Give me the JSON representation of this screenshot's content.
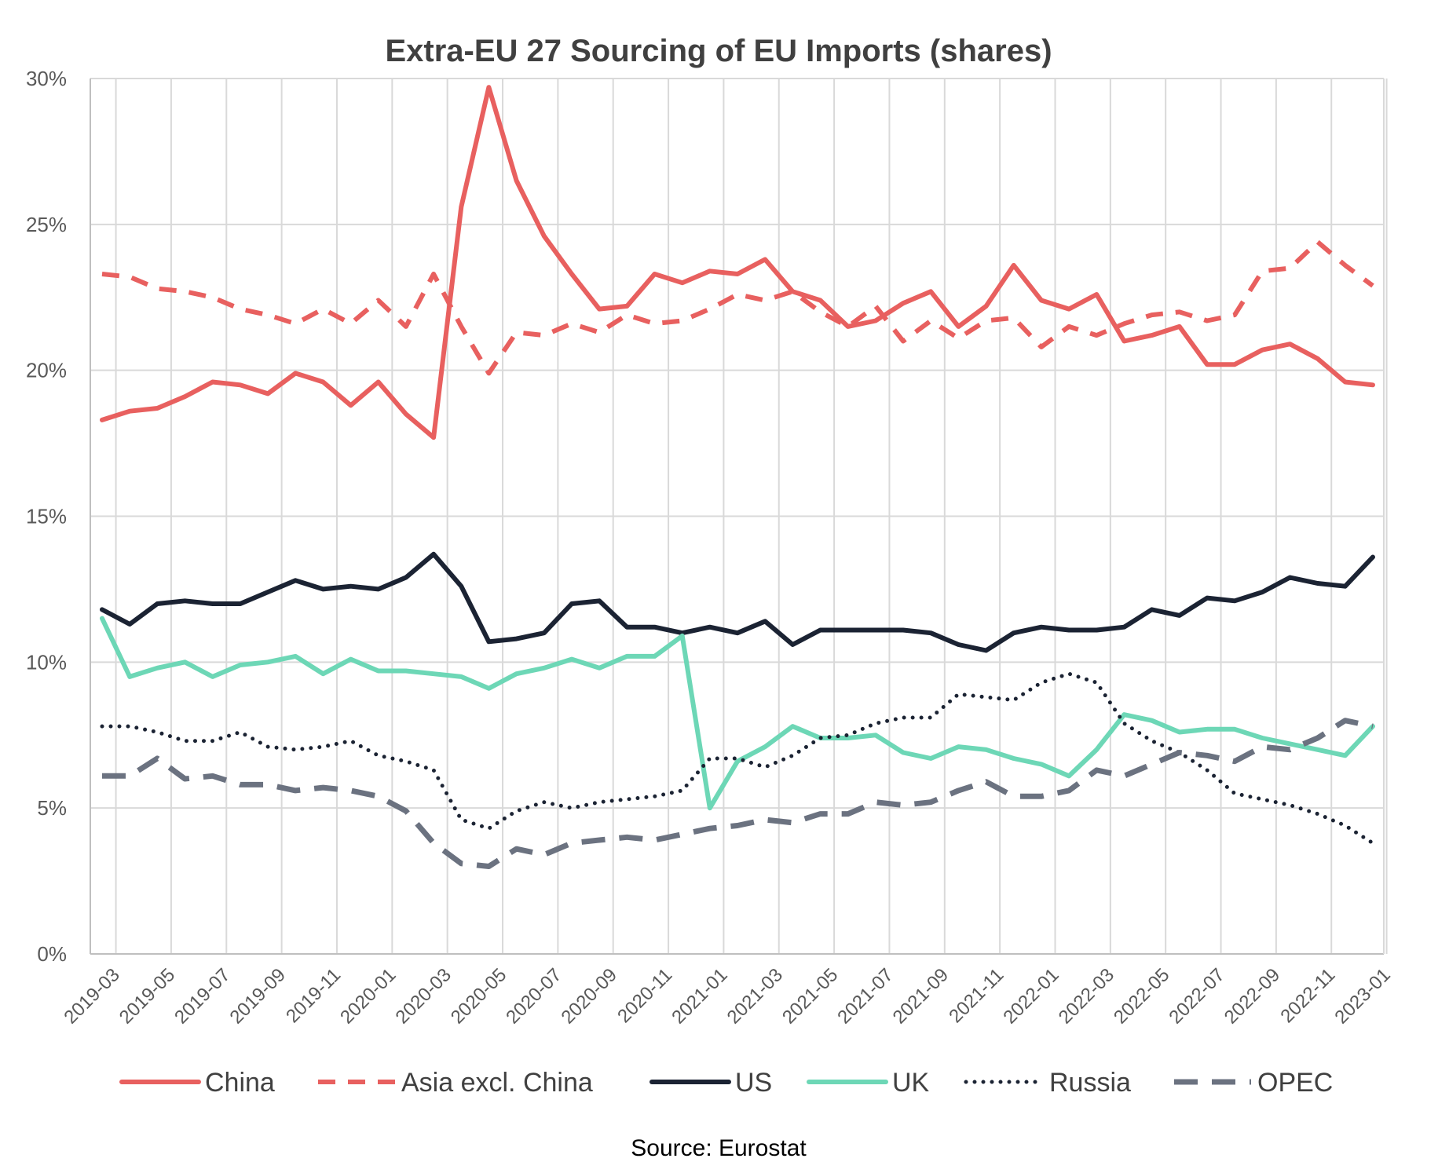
{
  "chart_data": {
    "type": "line",
    "title": "Extra-EU 27 Sourcing of EU Imports (shares)",
    "source": "Source: Eurostat",
    "ylim": [
      0,
      30
    ],
    "y_ticks": [
      0,
      5,
      10,
      15,
      20,
      25,
      30
    ],
    "y_tick_labels": [
      "0%",
      "5%",
      "10%",
      "15%",
      "20%",
      "25%",
      "30%"
    ],
    "grid": "on",
    "legend_position": "bottom",
    "x": [
      "2019-03",
      "2019-04",
      "2019-05",
      "2019-06",
      "2019-07",
      "2019-08",
      "2019-09",
      "2019-10",
      "2019-11",
      "2019-12",
      "2020-01",
      "2020-02",
      "2020-03",
      "2020-04",
      "2020-05",
      "2020-06",
      "2020-07",
      "2020-08",
      "2020-09",
      "2020-10",
      "2020-11",
      "2020-12",
      "2021-01",
      "2021-02",
      "2021-03",
      "2021-04",
      "2021-05",
      "2021-06",
      "2021-07",
      "2021-08",
      "2021-09",
      "2021-10",
      "2021-11",
      "2021-12",
      "2022-01",
      "2022-02",
      "2022-03",
      "2022-04",
      "2022-05",
      "2022-06",
      "2022-07",
      "2022-08",
      "2022-09",
      "2022-10",
      "2022-11",
      "2022-12",
      "2023-01"
    ],
    "x_tick_labels": [
      "2019-03",
      "2019-05",
      "2019-07",
      "2019-09",
      "2019-11",
      "2020-01",
      "2020-03",
      "2020-05",
      "2020-07",
      "2020-09",
      "2020-11",
      "2021-01",
      "2021-03",
      "2021-05",
      "2021-07",
      "2021-09",
      "2021-11",
      "2022-01",
      "2022-03",
      "2022-05",
      "2022-07",
      "2022-09",
      "2022-11",
      "2023-01"
    ],
    "series": [
      {
        "name": "China",
        "color": "#e8605f",
        "dash": "solid",
        "values": [
          18.3,
          18.6,
          18.7,
          19.1,
          19.6,
          19.5,
          19.2,
          19.9,
          19.6,
          18.8,
          19.6,
          18.5,
          17.7,
          25.6,
          29.7,
          26.5,
          24.6,
          23.3,
          22.1,
          22.2,
          23.3,
          23.0,
          23.4,
          23.3,
          23.8,
          22.7,
          22.4,
          21.5,
          21.7,
          22.3,
          22.7,
          21.5,
          22.2,
          23.6,
          22.4,
          22.1,
          22.6,
          21.0,
          21.2,
          21.5,
          20.2,
          20.2,
          20.7,
          20.9,
          20.4,
          19.6,
          19.5
        ]
      },
      {
        "name": "Asia excl. China",
        "color": "#e8605f",
        "dash": "dashed",
        "values": [
          23.3,
          23.2,
          22.8,
          22.7,
          22.5,
          22.1,
          21.9,
          21.6,
          22.1,
          21.6,
          22.4,
          21.5,
          23.3,
          21.5,
          19.9,
          21.3,
          21.2,
          21.6,
          21.3,
          21.9,
          21.6,
          21.7,
          22.1,
          22.6,
          22.4,
          22.7,
          22.0,
          21.5,
          22.2,
          21.0,
          21.7,
          21.1,
          21.7,
          21.8,
          20.8,
          21.5,
          21.2,
          21.6,
          21.9,
          22.0,
          21.7,
          21.9,
          23.4,
          23.5,
          24.4,
          23.6,
          22.9
        ]
      },
      {
        "name": "US",
        "color": "#1b2333",
        "dash": "solid",
        "values": [
          11.8,
          11.3,
          12.0,
          12.1,
          12.0,
          12.0,
          12.4,
          12.8,
          12.5,
          12.6,
          12.5,
          12.9,
          13.7,
          12.6,
          10.7,
          10.8,
          11.0,
          12.0,
          12.1,
          11.2,
          11.2,
          11.0,
          11.2,
          11.0,
          11.4,
          10.6,
          11.1,
          11.1,
          11.1,
          11.1,
          11.0,
          10.6,
          10.4,
          11.0,
          11.2,
          11.1,
          11.1,
          11.2,
          11.8,
          11.6,
          12.2,
          12.1,
          12.4,
          12.9,
          12.7,
          12.6,
          13.6
        ]
      },
      {
        "name": "UK",
        "color": "#6dd7b6",
        "dash": "solid",
        "values": [
          11.5,
          9.5,
          9.8,
          10.0,
          9.5,
          9.9,
          10.0,
          10.2,
          9.6,
          10.1,
          9.7,
          9.7,
          9.6,
          9.5,
          9.1,
          9.6,
          9.8,
          10.1,
          9.8,
          10.2,
          10.2,
          10.9,
          5.0,
          6.6,
          7.1,
          7.8,
          7.4,
          7.4,
          7.5,
          6.9,
          6.7,
          7.1,
          7.0,
          6.7,
          6.5,
          6.1,
          7.0,
          8.2,
          8.0,
          7.6,
          7.7,
          7.7,
          7.4,
          7.2,
          7.0,
          6.8,
          7.8
        ]
      },
      {
        "name": "Russia",
        "color": "#1b2333",
        "dash": "dotted",
        "values": [
          7.8,
          7.8,
          7.6,
          7.3,
          7.3,
          7.6,
          7.1,
          7.0,
          7.1,
          7.3,
          6.8,
          6.6,
          6.3,
          4.6,
          4.3,
          4.9,
          5.2,
          5.0,
          5.2,
          5.3,
          5.4,
          5.6,
          6.7,
          6.7,
          6.4,
          6.8,
          7.4,
          7.5,
          7.9,
          8.1,
          8.1,
          8.9,
          8.8,
          8.7,
          9.3,
          9.6,
          9.3,
          7.9,
          7.3,
          6.9,
          6.3,
          5.5,
          5.3,
          5.1,
          4.8,
          4.4,
          3.8
        ]
      },
      {
        "name": "OPEC",
        "color": "#6b7280",
        "dash": "longdash",
        "values": [
          6.1,
          6.1,
          6.7,
          6.0,
          6.1,
          5.8,
          5.8,
          5.6,
          5.7,
          5.6,
          5.4,
          4.9,
          3.8,
          3.1,
          3.0,
          3.6,
          3.4,
          3.8,
          3.9,
          4.0,
          3.9,
          4.1,
          4.3,
          4.4,
          4.6,
          4.5,
          4.8,
          4.8,
          5.2,
          5.1,
          5.2,
          5.6,
          5.9,
          5.4,
          5.4,
          5.6,
          6.3,
          6.1,
          6.5,
          6.9,
          6.8,
          6.6,
          7.1,
          7.0,
          7.4,
          8.0,
          7.8
        ]
      }
    ]
  }
}
